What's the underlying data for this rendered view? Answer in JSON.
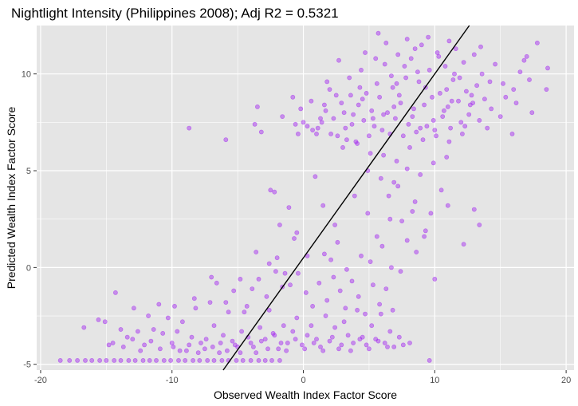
{
  "chart_data": {
    "type": "scatter",
    "title": "Nightlight Intensity (Philippines 2008); Adj R2 =  0.5321",
    "xlabel": "Observed Wealth Index Factor Score",
    "ylabel": "Predicted Wealth Index Factor Score",
    "xlim": [
      -20.3,
      20.6
    ],
    "ylim": [
      -5.3,
      12.5
    ],
    "x_ticks": [
      -20,
      -10,
      0,
      10,
      20
    ],
    "x_tick_labels": [
      "-20",
      "-10",
      "0",
      "10",
      "20"
    ],
    "y_ticks": [
      -5,
      0,
      5,
      10
    ],
    "y_tick_labels": [
      "-5",
      "0",
      "5",
      "10"
    ],
    "grid": true,
    "legend": "none",
    "colors": {
      "points": "#a020f0",
      "fit_line": "#000000",
      "panel_background": "#e5e5e5",
      "grid": "#ffffff"
    },
    "fit_line": {
      "slope": 0.95,
      "intercept": 0.5
    },
    "points": [
      [
        -18.5,
        -4.8
      ],
      [
        -17.8,
        -4.8
      ],
      [
        -17.2,
        -4.8
      ],
      [
        -16.6,
        -4.8
      ],
      [
        -16.1,
        -4.8
      ],
      [
        -15.5,
        -4.8
      ],
      [
        -15.0,
        -4.8
      ],
      [
        -14.4,
        -4.8
      ],
      [
        -13.9,
        -4.8
      ],
      [
        -13.3,
        -4.8
      ],
      [
        -12.8,
        -4.8
      ],
      [
        -12.2,
        -4.8
      ],
      [
        -11.7,
        -4.8
      ],
      [
        -11.2,
        -4.8
      ],
      [
        -10.6,
        -4.8
      ],
      [
        -10.1,
        -4.8
      ],
      [
        -9.5,
        -4.8
      ],
      [
        -9.0,
        -4.8
      ],
      [
        -8.4,
        -4.8
      ],
      [
        -7.9,
        -4.8
      ],
      [
        -7.3,
        -4.8
      ],
      [
        -6.8,
        -4.8
      ],
      [
        -6.2,
        -4.8
      ],
      [
        -5.7,
        -4.8
      ],
      [
        -5.1,
        -4.8
      ],
      [
        -4.6,
        -4.8
      ],
      [
        -4.0,
        -4.8
      ],
      [
        -3.4,
        -4.8
      ],
      [
        -2.9,
        -4.8
      ],
      [
        -2.4,
        -4.8
      ],
      [
        -1.8,
        -4.8
      ],
      [
        9.6,
        -4.8
      ],
      [
        -16.7,
        -3.1
      ],
      [
        -15.6,
        -2.7
      ],
      [
        -15.1,
        -2.8
      ],
      [
        -14.5,
        -3.9
      ],
      [
        -14.3,
        -1.3
      ],
      [
        -13.9,
        -3.2
      ],
      [
        -13.4,
        -3.6
      ],
      [
        -12.9,
        -2.1
      ],
      [
        -12.6,
        -3.3
      ],
      [
        -12.1,
        -4.0
      ],
      [
        -11.8,
        -2.5
      ],
      [
        -11.4,
        -3.2
      ],
      [
        -11.0,
        -1.9
      ],
      [
        -10.7,
        -3.4
      ],
      [
        -10.3,
        -2.6
      ],
      [
        -9.9,
        -4.1
      ],
      [
        -9.6,
        -3.3
      ],
      [
        -9.2,
        -2.8
      ],
      [
        -8.9,
        -4.3
      ],
      [
        -8.5,
        -3.6
      ],
      [
        -8.2,
        -2.1
      ],
      [
        -7.8,
        -3.9
      ],
      [
        -7.5,
        -4.2
      ],
      [
        -7.1,
        -1.8
      ],
      [
        -6.8,
        -3.0
      ],
      [
        -6.4,
        -4.4
      ],
      [
        -6.1,
        -3.5
      ],
      [
        -5.7,
        -2.3
      ],
      [
        -5.4,
        -3.8
      ],
      [
        -5.0,
        -4.1
      ],
      [
        -4.7,
        -3.3
      ],
      [
        -4.3,
        -2.0
      ],
      [
        -4.0,
        -3.9
      ],
      [
        -3.6,
        -4.4
      ],
      [
        -3.3,
        -3.1
      ],
      [
        -2.9,
        -3.7
      ],
      [
        -2.6,
        -2.2
      ],
      [
        -2.2,
        -3.5
      ],
      [
        -1.9,
        -4.2
      ],
      [
        -1.5,
        -3.0
      ],
      [
        -1.2,
        -3.9
      ],
      [
        -0.8,
        -3.3
      ],
      [
        -0.5,
        -2.6
      ],
      [
        -0.1,
        -4.0
      ],
      [
        0.3,
        -3.5
      ],
      [
        0.6,
        -3.0
      ],
      [
        1.0,
        -3.7
      ],
      [
        1.3,
        -4.1
      ],
      [
        1.7,
        -2.5
      ],
      [
        2.0,
        -3.8
      ],
      [
        2.4,
        -3.1
      ],
      [
        2.7,
        -4.2
      ],
      [
        3.1,
        -2.8
      ],
      [
        3.4,
        -3.5
      ],
      [
        3.8,
        -3.9
      ],
      [
        4.1,
        -2.2
      ],
      [
        4.5,
        -3.6
      ],
      [
        4.8,
        -4.0
      ],
      [
        5.2,
        -3.0
      ],
      [
        5.5,
        -3.7
      ],
      [
        5.9,
        -2.4
      ],
      [
        6.2,
        -3.9
      ],
      [
        6.6,
        -3.3
      ],
      [
        6.9,
        -4.1
      ],
      [
        7.3,
        -3.6
      ],
      [
        -14.8,
        -4.0
      ],
      [
        -13.7,
        -4.1
      ],
      [
        -13.0,
        -3.7
      ],
      [
        -12.4,
        -4.3
      ],
      [
        -11.6,
        -3.8
      ],
      [
        -10.9,
        -4.2
      ],
      [
        -10.0,
        -3.9
      ],
      [
        -9.4,
        -4.3
      ],
      [
        -8.7,
        -4.0
      ],
      [
        -8.0,
        -4.4
      ],
      [
        -7.4,
        -3.7
      ],
      [
        -6.9,
        -4.1
      ],
      [
        -6.3,
        -3.9
      ],
      [
        -5.8,
        -4.3
      ],
      [
        -5.2,
        -4.0
      ],
      [
        -4.8,
        -4.4
      ],
      [
        -4.2,
        -3.6
      ],
      [
        -3.8,
        -4.1
      ],
      [
        -3.2,
        -3.8
      ],
      [
        -2.7,
        -4.2
      ],
      [
        -2.3,
        -3.4
      ],
      [
        -1.7,
        -3.9
      ],
      [
        -1.3,
        -4.3
      ],
      [
        -0.6,
        -3.7
      ],
      [
        0.1,
        -4.2
      ],
      [
        0.8,
        -3.9
      ],
      [
        1.5,
        -4.3
      ],
      [
        2.2,
        -3.6
      ],
      [
        2.9,
        -4.0
      ],
      [
        3.6,
        -4.3
      ],
      [
        4.3,
        -3.7
      ],
      [
        5.0,
        -4.2
      ],
      [
        5.7,
        -3.8
      ],
      [
        6.4,
        -4.1
      ],
      [
        7.6,
        -4.0
      ],
      [
        8.1,
        -3.9
      ],
      [
        -9.8,
        -2.0
      ],
      [
        -8.3,
        -1.6
      ],
      [
        -7.0,
        -0.5
      ],
      [
        -6.6,
        -0.8
      ],
      [
        -5.9,
        -1.8
      ],
      [
        -5.3,
        -1.2
      ],
      [
        -4.5,
        -2.3
      ],
      [
        -3.9,
        -1.1
      ],
      [
        -3.4,
        -0.6
      ],
      [
        -2.8,
        -1.5
      ],
      [
        -2.1,
        -0.2
      ],
      [
        -1.6,
        -1.0
      ],
      [
        -1.0,
        -0.9
      ],
      [
        -0.4,
        -0.3
      ],
      [
        0.2,
        -1.3
      ],
      [
        0.7,
        -2.0
      ],
      [
        1.2,
        -0.8
      ],
      [
        1.8,
        -1.7
      ],
      [
        2.3,
        -0.5
      ],
      [
        2.8,
        -1.2
      ],
      [
        3.2,
        -2.1
      ],
      [
        3.7,
        -0.7
      ],
      [
        4.2,
        -1.5
      ],
      [
        4.7,
        -2.4
      ],
      [
        5.3,
        -0.9
      ],
      [
        5.8,
        -1.9
      ],
      [
        6.3,
        -1.1
      ],
      [
        6.8,
        -2.2
      ],
      [
        -4.8,
        -0.6
      ],
      [
        -2.6,
        0.2
      ],
      [
        -2.0,
        0.5
      ],
      [
        -1.4,
        -0.3
      ],
      [
        -0.7,
        1.5
      ],
      [
        0.3,
        0.6
      ],
      [
        1.6,
        0.7
      ],
      [
        2.1,
        0.4
      ],
      [
        2.6,
        1.3
      ],
      [
        3.3,
        -0.1
      ],
      [
        4.4,
        0.6
      ],
      [
        5.1,
        0.3
      ],
      [
        6.0,
        1.1
      ],
      [
        6.7,
        0.0
      ],
      [
        7.4,
        -0.2
      ],
      [
        7.9,
        1.4
      ],
      [
        8.6,
        0.8
      ],
      [
        9.2,
        1.6
      ],
      [
        10.0,
        -0.6
      ],
      [
        12.2,
        1.2
      ],
      [
        13.0,
        3.0
      ],
      [
        13.4,
        2.2
      ],
      [
        8.3,
        2.9
      ],
      [
        7.2,
        4.2
      ],
      [
        6.6,
        2.5
      ],
      [
        5.6,
        1.6
      ],
      [
        4.9,
        2.8
      ],
      [
        3.9,
        3.7
      ],
      [
        2.4,
        2.2
      ],
      [
        1.5,
        3.2
      ],
      [
        0.9,
        4.7
      ],
      [
        -2.2,
        3.9
      ],
      [
        -1.8,
        2.2
      ],
      [
        -1.1,
        3.1
      ],
      [
        -0.5,
        1.8
      ],
      [
        -3.6,
        0.8
      ],
      [
        -2.5,
        4.0
      ],
      [
        -8.7,
        7.2
      ],
      [
        -5.9,
        6.6
      ],
      [
        -3.7,
        7.4
      ],
      [
        -3.5,
        8.3
      ],
      [
        -3.2,
        7.0
      ],
      [
        -1.6,
        7.8
      ],
      [
        -0.8,
        8.8
      ],
      [
        -0.6,
        7.4
      ],
      [
        -0.4,
        6.9
      ],
      [
        -0.2,
        8.2
      ],
      [
        0.3,
        7.3
      ],
      [
        0.7,
        7.1
      ],
      [
        1.0,
        6.9
      ],
      [
        1.4,
        7.5
      ],
      [
        1.7,
        8.1
      ],
      [
        2.0,
        9.2
      ],
      [
        2.3,
        7.7
      ],
      [
        2.6,
        6.8
      ],
      [
        2.9,
        8.5
      ],
      [
        3.2,
        7.2
      ],
      [
        3.5,
        9.8
      ],
      [
        3.8,
        7.9
      ],
      [
        4.0,
        6.5
      ],
      [
        4.2,
        8.4
      ],
      [
        4.4,
        10.2
      ],
      [
        4.6,
        7.6
      ],
      [
        4.8,
        9.0
      ],
      [
        5.0,
        6.8
      ],
      [
        5.2,
        8.1
      ],
      [
        5.4,
        7.3
      ],
      [
        5.6,
        9.5
      ],
      [
        5.8,
        8.8
      ],
      [
        6.0,
        7.1
      ],
      [
        6.2,
        10.5
      ],
      [
        6.4,
        8.0
      ],
      [
        6.6,
        6.9
      ],
      [
        6.8,
        9.3
      ],
      [
        7.0,
        7.7
      ],
      [
        7.2,
        11.0
      ],
      [
        7.4,
        8.5
      ],
      [
        7.6,
        6.8
      ],
      [
        7.8,
        9.8
      ],
      [
        8.0,
        7.4
      ],
      [
        8.2,
        10.8
      ],
      [
        8.4,
        8.2
      ],
      [
        8.6,
        7.0
      ],
      [
        8.8,
        9.6
      ],
      [
        9.0,
        11.5
      ],
      [
        9.2,
        8.4
      ],
      [
        9.4,
        7.3
      ],
      [
        9.6,
        10.2
      ],
      [
        9.8,
        8.8
      ],
      [
        10.0,
        7.1
      ],
      [
        10.2,
        11.1
      ],
      [
        10.4,
        9.0
      ],
      [
        10.6,
        7.8
      ],
      [
        10.8,
        10.4
      ],
      [
        11.0,
        8.3
      ],
      [
        11.2,
        7.2
      ],
      [
        11.4,
        9.7
      ],
      [
        11.6,
        11.3
      ],
      [
        11.8,
        8.6
      ],
      [
        12.0,
        7.5
      ],
      [
        12.2,
        10.6
      ],
      [
        12.4,
        9.1
      ],
      [
        12.6,
        7.9
      ],
      [
        12.8,
        8.9
      ],
      [
        13.0,
        11.0
      ],
      [
        13.2,
        9.4
      ],
      [
        13.4,
        7.6
      ],
      [
        13.6,
        10.0
      ],
      [
        13.8,
        8.7
      ],
      [
        14.2,
        9.6
      ],
      [
        14.6,
        10.5
      ],
      [
        15.0,
        7.8
      ],
      [
        15.4,
        8.8
      ],
      [
        16.0,
        9.2
      ],
      [
        16.5,
        10.1
      ],
      [
        17.0,
        10.9
      ],
      [
        17.4,
        8.0
      ],
      [
        17.8,
        11.6
      ],
      [
        18.5,
        9.2
      ],
      [
        18.6,
        10.3
      ],
      [
        15.9,
        6.9
      ],
      [
        16.8,
        10.7
      ],
      [
        3.0,
        6.2
      ],
      [
        4.1,
        6.4
      ],
      [
        5.1,
        5.9
      ],
      [
        6.1,
        5.8
      ],
      [
        7.1,
        5.5
      ],
      [
        8.1,
        6.2
      ],
      [
        9.1,
        6.6
      ],
      [
        10.1,
        6.8
      ],
      [
        11.1,
        6.5
      ],
      [
        12.1,
        6.9
      ],
      [
        4.9,
        5.0
      ],
      [
        5.9,
        4.6
      ],
      [
        6.9,
        4.4
      ],
      [
        7.9,
        5.1
      ],
      [
        8.9,
        4.8
      ],
      [
        9.9,
        5.4
      ],
      [
        10.9,
        5.7
      ],
      [
        8.5,
        3.4
      ],
      [
        9.7,
        2.8
      ],
      [
        10.5,
        4.0
      ],
      [
        11.0,
        3.2
      ],
      [
        9.3,
        1.9
      ],
      [
        6.5,
        3.7
      ],
      [
        7.5,
        2.4
      ],
      [
        0.6,
        8.6
      ],
      [
        1.8,
        9.6
      ],
      [
        2.7,
        10.7
      ],
      [
        3.6,
        8.9
      ],
      [
        4.7,
        11.1
      ],
      [
        5.5,
        10.8
      ],
      [
        6.3,
        11.6
      ],
      [
        7.1,
        9.5
      ],
      [
        7.9,
        11.8
      ],
      [
        8.7,
        10.1
      ],
      [
        9.5,
        11.9
      ],
      [
        10.3,
        10.9
      ],
      [
        11.1,
        11.7
      ],
      [
        11.9,
        9.8
      ],
      [
        12.7,
        8.4
      ],
      [
        13.5,
        11.4
      ],
      [
        14.3,
        8.2
      ],
      [
        3.3,
        6.6
      ],
      [
        1.1,
        7.2
      ],
      [
        0.0,
        7.5
      ],
      [
        6.1,
        7.9
      ],
      [
        7.3,
        8.9
      ],
      [
        8.3,
        7.8
      ],
      [
        9.3,
        9.3
      ],
      [
        10.7,
        8.1
      ],
      [
        11.5,
        10.0
      ],
      [
        12.3,
        7.3
      ],
      [
        5.3,
        7.7
      ],
      [
        4.5,
        8.7
      ],
      [
        3.7,
        7.4
      ],
      [
        2.5,
        8.9
      ],
      [
        1.3,
        7.7
      ],
      [
        6.7,
        9.9
      ],
      [
        8.9,
        7.2
      ],
      [
        10.9,
        9.2
      ],
      [
        12.9,
        8.5
      ],
      [
        14.0,
        7.2
      ],
      [
        15.2,
        9.5
      ],
      [
        16.2,
        8.5
      ],
      [
        17.2,
        9.7
      ],
      [
        5.7,
        12.1
      ],
      [
        8.5,
        11.3
      ],
      [
        11.3,
        8.6
      ],
      [
        9.9,
        7.6
      ],
      [
        7.7,
        10.4
      ],
      [
        6.9,
        8.3
      ],
      [
        4.3,
        9.3
      ],
      [
        3.1,
        8.0
      ],
      [
        2.1,
        6.9
      ],
      [
        1.6,
        8.4
      ]
    ]
  }
}
